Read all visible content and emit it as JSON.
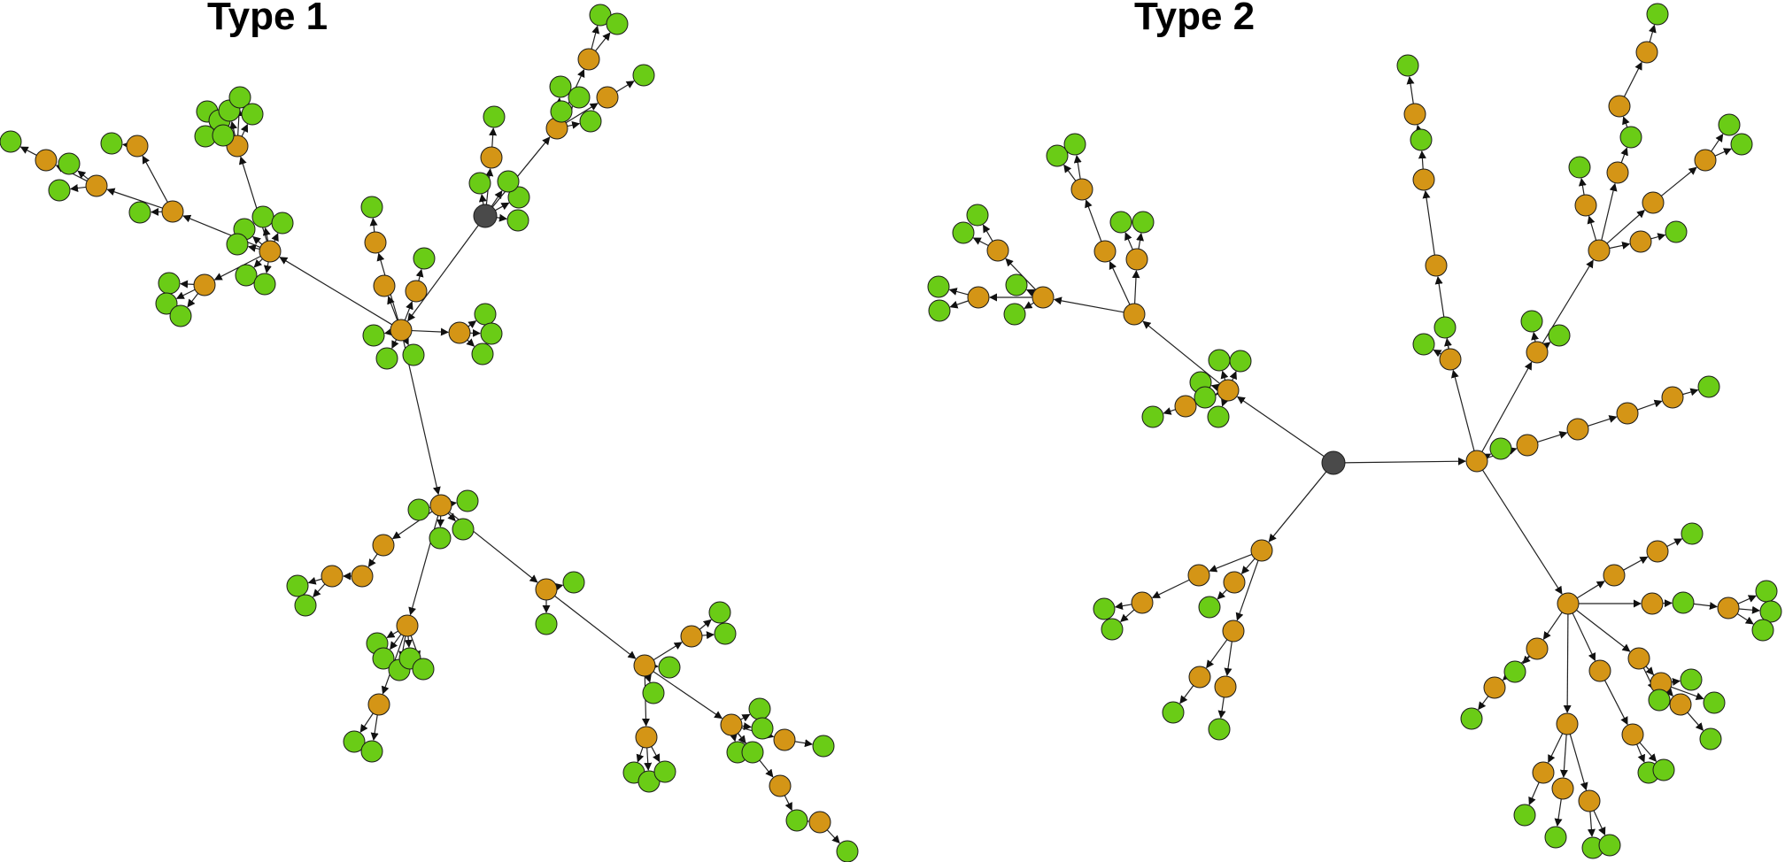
{
  "panels": [
    {
      "title": "Type 1"
    },
    {
      "title": "Type 2"
    }
  ],
  "colors": {
    "root": "#4a4a4a",
    "internal": "#d49516",
    "leaf": "#6acc16",
    "edge": "#222222",
    "stroke": "#1a1a1a"
  }
}
